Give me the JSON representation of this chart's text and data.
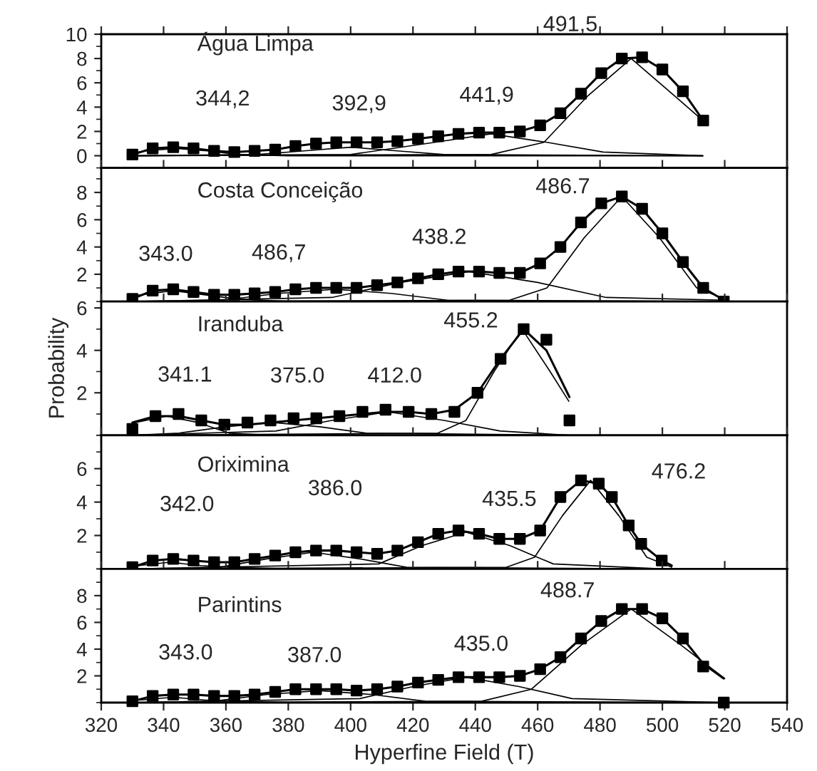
{
  "chart_data": [
    {
      "type": "line",
      "title": "Água Limpa",
      "xlim": [
        320,
        540
      ],
      "xticks": [
        320,
        340,
        360,
        380,
        400,
        420,
        440,
        460,
        480,
        500,
        520,
        540
      ],
      "ylim": [
        -1,
        10
      ],
      "yticks": [
        0,
        2,
        4,
        6,
        8,
        10
      ],
      "tick_labels": "y",
      "series": [
        {
          "type": "scatter",
          "marker": "square",
          "color": "#000000",
          "x": [
            330.0,
            336.5,
            343.1,
            349.6,
            356.2,
            362.7,
            369.2,
            375.8,
            382.3,
            388.9,
            395.4,
            401.9,
            408.5,
            415.0,
            421.6,
            428.1,
            434.6,
            441.2,
            447.7,
            454.3,
            460.8,
            467.3,
            473.9,
            480.4,
            487.0,
            493.5,
            500.0,
            506.6,
            513.1
          ],
          "values": [
            0.1,
            0.6,
            0.7,
            0.6,
            0.4,
            0.3,
            0.4,
            0.5,
            0.8,
            1.0,
            1.1,
            1.1,
            1.1,
            1.2,
            1.4,
            1.6,
            1.8,
            1.9,
            1.9,
            2.0,
            2.5,
            3.5,
            5.1,
            6.8,
            8.0,
            8.1,
            7.1,
            5.3,
            2.9
          ]
        },
        {
          "type": "line",
          "color": "#000000",
          "x": [
            330.0,
            336.5,
            343.1,
            349.6,
            356.2,
            362.7,
            369.2,
            375.8,
            382.3,
            388.9,
            395.4,
            401.9,
            408.5,
            415.0,
            421.6,
            428.1,
            434.6,
            441.2,
            447.7,
            454.3,
            460.8,
            467.3,
            473.9,
            480.4,
            487.0,
            493.5,
            500.0,
            506.6,
            513.1
          ],
          "values": [
            0.1,
            0.6,
            0.7,
            0.6,
            0.4,
            0.3,
            0.4,
            0.5,
            0.8,
            1.0,
            1.1,
            1.1,
            1.1,
            1.2,
            1.4,
            1.6,
            1.8,
            1.9,
            1.9,
            2.0,
            2.5,
            3.5,
            5.1,
            6.8,
            8.0,
            8.1,
            7.1,
            5.3,
            2.9
          ]
        },
        {
          "type": "line",
          "color": "#000000",
          "x": [
            330,
            334,
            344,
            354,
            364,
            380,
            513
          ],
          "values": [
            0.2,
            0.4,
            0.6,
            0.4,
            0.1,
            0,
            0
          ]
        },
        {
          "type": "line",
          "color": "#000000",
          "x": [
            330,
            370,
            385,
            400,
            415,
            430,
            513
          ],
          "values": [
            0,
            0.1,
            0.4,
            0.7,
            0.4,
            0.1,
            0
          ]
        },
        {
          "type": "line",
          "color": "#000000",
          "x": [
            330,
            400,
            427,
            445,
            463,
            481,
            513
          ],
          "values": [
            0,
            0.1,
            1.1,
            1.8,
            1.1,
            0.3,
            0
          ]
        },
        {
          "type": "line",
          "color": "#000000",
          "x": [
            330,
            445,
            462,
            476,
            490,
            504,
            513
          ],
          "values": [
            0,
            0.1,
            1.1,
            4.9,
            8.0,
            4.9,
            2.9
          ]
        }
      ],
      "annotations": [
        "344,2",
        "392,9",
        "441,9",
        "491,5"
      ]
    },
    {
      "type": "line",
      "title": "Costa Conceição",
      "xlim": [
        320,
        540
      ],
      "xticks": [
        320,
        340,
        360,
        380,
        400,
        420,
        440,
        460,
        480,
        500,
        520,
        540
      ],
      "ylim": [
        0,
        9.8
      ],
      "yticks": [
        2,
        4,
        6,
        8
      ],
      "tick_labels": "y",
      "series": [
        {
          "type": "scatter",
          "marker": "square",
          "color": "#000000",
          "x": [
            330.0,
            336.5,
            343.1,
            349.6,
            356.2,
            362.7,
            369.2,
            375.8,
            382.3,
            388.9,
            395.4,
            401.9,
            408.5,
            415.0,
            421.6,
            428.1,
            434.6,
            441.2,
            447.7,
            454.3,
            460.8,
            467.3,
            473.9,
            480.4,
            487.0,
            493.5,
            500.0,
            506.6,
            513.1,
            519.7
          ],
          "values": [
            0.2,
            0.8,
            0.9,
            0.7,
            0.5,
            0.5,
            0.6,
            0.7,
            0.9,
            1.0,
            1.0,
            1.0,
            1.2,
            1.4,
            1.7,
            2.0,
            2.2,
            2.2,
            2.1,
            2.1,
            2.8,
            4.0,
            5.8,
            7.2,
            7.7,
            6.8,
            5.0,
            2.9,
            1.0,
            0
          ]
        },
        {
          "type": "line",
          "color": "#000000",
          "x": [
            330.0,
            336.5,
            343.1,
            349.6,
            356.2,
            362.7,
            369.2,
            375.8,
            382.3,
            388.9,
            395.4,
            401.9,
            408.5,
            415.0,
            421.6,
            428.1,
            434.6,
            441.2,
            447.7,
            454.3,
            460.8,
            467.3,
            473.9,
            480.4,
            487.0,
            493.5,
            500.0,
            506.6,
            513.1,
            519.7
          ],
          "values": [
            0.2,
            0.8,
            0.9,
            0.7,
            0.5,
            0.5,
            0.6,
            0.7,
            0.9,
            1.0,
            1.0,
            1.0,
            1.2,
            1.4,
            1.7,
            2.0,
            2.2,
            2.2,
            2.1,
            2.1,
            2.8,
            4.0,
            5.8,
            7.2,
            7.7,
            6.8,
            5.0,
            2.9,
            1.0,
            0.1
          ]
        },
        {
          "type": "line",
          "color": "#000000",
          "x": [
            330,
            333,
            343,
            353,
            363,
            380,
            520
          ],
          "values": [
            0.4,
            0.5,
            0.8,
            0.5,
            0.2,
            0,
            0
          ]
        },
        {
          "type": "line",
          "color": "#000000",
          "x": [
            330,
            359,
            377,
            395,
            413,
            431,
            520
          ],
          "values": [
            0,
            0.1,
            0.6,
            0.9,
            0.6,
            0.1,
            0
          ]
        },
        {
          "type": "line",
          "color": "#000000",
          "x": [
            330,
            394,
            416,
            438,
            460,
            482,
            520
          ],
          "values": [
            0,
            0.3,
            1.4,
            2.2,
            1.4,
            0.3,
            0.1
          ]
        },
        {
          "type": "line",
          "color": "#000000",
          "x": [
            330,
            451,
            463,
            475,
            487,
            499,
            511,
            520
          ],
          "values": [
            0,
            0.1,
            1.0,
            4.7,
            7.7,
            4.7,
            1.0,
            0.2
          ]
        }
      ],
      "annotations": [
        "343.0",
        "486,7",
        "438.2",
        "486.7"
      ]
    },
    {
      "type": "line",
      "title": "Iranduba",
      "ylabel": "Probability",
      "xlim": [
        320,
        540
      ],
      "xticks": [
        320,
        340,
        360,
        380,
        400,
        420,
        440,
        460,
        480,
        500,
        520,
        540
      ],
      "ylim": [
        0,
        6.3
      ],
      "yticks": [
        2,
        4,
        6
      ],
      "tick_labels": "y",
      "series": [
        {
          "type": "scatter",
          "marker": "square",
          "color": "#000000",
          "x": [
            330.0,
            337.4,
            344.8,
            352.1,
            359.5,
            366.9,
            374.3,
            381.7,
            389.0,
            396.4,
            403.8,
            411.2,
            418.6,
            425.9,
            433.3,
            440.7,
            448.1,
            455.5,
            462.8,
            470.2
          ],
          "values": [
            0.3,
            0.9,
            1.0,
            0.7,
            0.5,
            0.6,
            0.7,
            0.8,
            0.8,
            0.9,
            1.1,
            1.2,
            1.1,
            1.0,
            1.1,
            2.0,
            3.6,
            5.0,
            4.5,
            0.7
          ]
        },
        {
          "type": "line",
          "color": "#000000",
          "x": [
            330.0,
            337.4,
            344.8,
            352.1,
            359.5,
            366.9,
            374.3,
            381.7,
            389.0,
            396.4,
            403.8,
            411.2,
            418.6,
            425.9,
            433.3,
            440.7,
            448.1,
            455.5,
            462.8,
            470.2
          ],
          "values": [
            0.6,
            0.9,
            0.9,
            0.7,
            0.5,
            0.5,
            0.6,
            0.7,
            0.8,
            0.9,
            1.0,
            1.1,
            1.1,
            1.0,
            1.2,
            2.0,
            3.6,
            5.0,
            4.0,
            1.8
          ]
        },
        {
          "type": "line",
          "color": "#000000",
          "x": [
            330,
            331,
            341,
            351,
            361,
            375,
            470
          ],
          "values": [
            0.5,
            0.6,
            0.9,
            0.6,
            0.1,
            0,
            0
          ]
        },
        {
          "type": "line",
          "color": "#000000",
          "x": [
            330,
            345,
            360,
            375,
            390,
            405,
            470
          ],
          "values": [
            0,
            0.1,
            0.4,
            0.6,
            0.4,
            0.1,
            0
          ]
        },
        {
          "type": "line",
          "color": "#000000",
          "x": [
            330,
            376,
            394,
            412,
            430,
            448,
            470
          ],
          "values": [
            0,
            0.2,
            0.7,
            1.1,
            0.7,
            0.2,
            0
          ]
        },
        {
          "type": "line",
          "color": "#000000",
          "x": [
            330,
            428,
            437,
            446,
            455,
            464,
            470
          ],
          "values": [
            0,
            0.1,
            0.7,
            3.0,
            5.0,
            3.0,
            1.6
          ]
        }
      ],
      "annotations": [
        "455.2",
        "341.1",
        "375.0",
        "412.0"
      ]
    },
    {
      "type": "line",
      "title": "Oriximina",
      "xlim": [
        320,
        540
      ],
      "xticks": [
        320,
        340,
        360,
        380,
        400,
        420,
        440,
        460,
        480,
        500,
        520,
        540
      ],
      "ylim": [
        0,
        8
      ],
      "yticks": [
        2,
        4,
        6
      ],
      "tick_labels": "y",
      "series": [
        {
          "type": "scatter",
          "marker": "square",
          "color": "#000000",
          "x": [
            330.0,
            336.5,
            343.1,
            349.6,
            356.2,
            362.7,
            369.2,
            375.8,
            382.3,
            388.9,
            395.4,
            401.9,
            408.5,
            415.0,
            421.6,
            428.1,
            434.6,
            441.2,
            447.7,
            454.3,
            460.8,
            467.3,
            473.9,
            479.6,
            483.8,
            489.2,
            493.2,
            499.8
          ],
          "values": [
            0.1,
            0.5,
            0.6,
            0.5,
            0.4,
            0.4,
            0.6,
            0.8,
            1.0,
            1.1,
            1.1,
            1.0,
            0.9,
            1.1,
            1.6,
            2.1,
            2.3,
            2.1,
            1.8,
            1.8,
            2.3,
            4.3,
            5.3,
            5.1,
            4.3,
            2.6,
            1.5,
            0.5
          ]
        },
        {
          "type": "line",
          "color": "#000000",
          "x": [
            330.0,
            336.5,
            343.1,
            349.6,
            356.2,
            362.7,
            369.2,
            375.8,
            382.3,
            388.9,
            395.4,
            401.9,
            408.5,
            415.0,
            421.6,
            428.1,
            434.6,
            441.2,
            447.7,
            454.3,
            460.8,
            467.3,
            473.9,
            479.6,
            483.8,
            489.2,
            493.2,
            499.8,
            503.0
          ],
          "values": [
            0.1,
            0.5,
            0.6,
            0.5,
            0.4,
            0.4,
            0.6,
            0.8,
            1.0,
            1.1,
            1.1,
            1.0,
            0.9,
            1.1,
            1.6,
            2.1,
            2.3,
            2.1,
            1.8,
            1.8,
            2.3,
            4.3,
            5.3,
            5.1,
            4.3,
            2.6,
            1.5,
            0.5,
            0.2
          ]
        },
        {
          "type": "line",
          "color": "#000000",
          "x": [
            330,
            332,
            342,
            352,
            362,
            380,
            500
          ],
          "values": [
            0.2,
            0.2,
            0.4,
            0.2,
            0.1,
            0,
            0
          ]
        },
        {
          "type": "line",
          "color": "#000000",
          "x": [
            330,
            358,
            373,
            388,
            403,
            418,
            500
          ],
          "values": [
            0,
            0.1,
            0.6,
            1.0,
            0.6,
            0.1,
            0
          ]
        },
        {
          "type": "line",
          "color": "#000000",
          "x": [
            330,
            409,
            423,
            437,
            451,
            465,
            500
          ],
          "values": [
            0,
            0.3,
            1.4,
            2.2,
            1.4,
            0.3,
            0
          ]
        },
        {
          "type": "line",
          "color": "#000000",
          "x": [
            330,
            450,
            459,
            468,
            477,
            486,
            495,
            503
          ],
          "values": [
            0,
            0.1,
            0.7,
            3.2,
            5.3,
            3.2,
            0.7,
            0.1
          ]
        }
      ],
      "annotations": [
        "342.0",
        "386.0",
        "435.5",
        "476.2"
      ]
    },
    {
      "type": "line",
      "title": "Parintins",
      "xlabel": "Hyperfine Field (T)",
      "xlim": [
        320,
        540
      ],
      "xticks": [
        320,
        340,
        360,
        380,
        400,
        420,
        440,
        460,
        480,
        500,
        520,
        540
      ],
      "ylim": [
        0,
        10
      ],
      "yticks": [
        2,
        4,
        6,
        8
      ],
      "series": [
        {
          "type": "scatter",
          "marker": "square",
          "color": "#000000",
          "x": [
            330.0,
            336.5,
            343.1,
            349.6,
            356.2,
            362.7,
            369.2,
            375.8,
            382.3,
            388.9,
            395.4,
            401.9,
            408.5,
            415.0,
            421.6,
            428.1,
            434.6,
            441.2,
            447.7,
            454.3,
            460.8,
            467.3,
            473.9,
            480.4,
            487.0,
            493.5,
            500.0,
            506.6,
            513.1,
            519.7
          ],
          "values": [
            0.1,
            0.5,
            0.6,
            0.6,
            0.5,
            0.5,
            0.6,
            0.8,
            1.0,
            1.0,
            1.0,
            0.9,
            1.0,
            1.2,
            1.5,
            1.7,
            1.9,
            1.9,
            1.9,
            2.0,
            2.5,
            3.4,
            4.8,
            6.1,
            7.0,
            7.0,
            6.3,
            4.8,
            2.7,
            0
          ]
        },
        {
          "type": "line",
          "color": "#000000",
          "x": [
            330.0,
            336.5,
            343.1,
            349.6,
            356.2,
            362.7,
            369.2,
            375.8,
            382.3,
            388.9,
            395.4,
            401.9,
            408.5,
            415.0,
            421.6,
            428.1,
            434.6,
            441.2,
            447.7,
            454.3,
            460.8,
            467.3,
            473.9,
            480.4,
            487.0,
            493.5,
            500.0,
            506.6,
            513.1,
            519.7
          ],
          "values": [
            0.1,
            0.5,
            0.6,
            0.6,
            0.5,
            0.5,
            0.6,
            0.8,
            1.0,
            1.0,
            1.0,
            0.9,
            1.0,
            1.2,
            1.5,
            1.7,
            1.9,
            1.9,
            1.9,
            2.0,
            2.5,
            3.4,
            4.8,
            6.1,
            7.0,
            7.0,
            6.3,
            4.8,
            2.9,
            1.8
          ]
        },
        {
          "type": "line",
          "color": "#000000",
          "x": [
            330,
            333,
            343,
            353,
            363,
            380,
            520
          ],
          "values": [
            0.2,
            0.2,
            0.4,
            0.2,
            0.1,
            0,
            0
          ]
        },
        {
          "type": "line",
          "color": "#000000",
          "x": [
            330,
            356,
            373,
            390,
            407,
            424,
            520
          ],
          "values": [
            0,
            0.1,
            0.6,
            0.9,
            0.6,
            0.1,
            0
          ]
        },
        {
          "type": "line",
          "color": "#000000",
          "x": [
            330,
            403,
            420,
            437,
            454,
            471,
            520
          ],
          "values": [
            0,
            0.3,
            1.2,
            1.9,
            1.2,
            0.3,
            0
          ]
        },
        {
          "type": "line",
          "color": "#000000",
          "x": [
            330,
            442,
            458,
            474,
            490,
            506,
            520
          ],
          "values": [
            0,
            0.1,
            1.0,
            4.3,
            7.0,
            4.3,
            1.8
          ]
        }
      ],
      "annotations": [
        "343.0",
        "387.0",
        "435.0",
        "488.7"
      ]
    }
  ]
}
